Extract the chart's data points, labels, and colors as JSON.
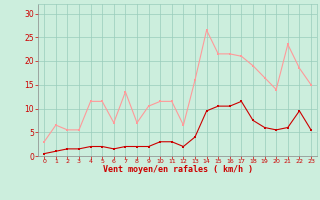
{
  "x": [
    0,
    1,
    2,
    3,
    4,
    5,
    6,
    7,
    8,
    9,
    10,
    11,
    12,
    13,
    14,
    15,
    16,
    17,
    18,
    19,
    20,
    21,
    22,
    23
  ],
  "avg_wind": [
    0.5,
    1.0,
    1.5,
    1.5,
    2.0,
    2.0,
    1.5,
    2.0,
    2.0,
    2.0,
    3.0,
    3.0,
    2.0,
    4.0,
    9.5,
    10.5,
    10.5,
    11.5,
    7.5,
    6.0,
    5.5,
    6.0,
    9.5,
    5.5
  ],
  "gust_wind": [
    3.0,
    6.5,
    5.5,
    5.5,
    11.5,
    11.5,
    7.0,
    13.5,
    7.0,
    10.5,
    11.5,
    11.5,
    6.5,
    16.0,
    26.5,
    21.5,
    21.5,
    21.0,
    19.0,
    16.5,
    14.0,
    23.5,
    18.5,
    15.0
  ],
  "avg_color": "#cc0000",
  "gust_color": "#ff9999",
  "bg_color": "#cceedd",
  "grid_color": "#99ccbb",
  "xlabel": "Vent moyen/en rafales ( km/h )",
  "xlabel_color": "#cc0000",
  "tick_color": "#cc0000",
  "yticks": [
    0,
    5,
    10,
    15,
    20,
    25,
    30
  ],
  "ylim": [
    0,
    32
  ],
  "xlim": [
    -0.5,
    23.5
  ]
}
